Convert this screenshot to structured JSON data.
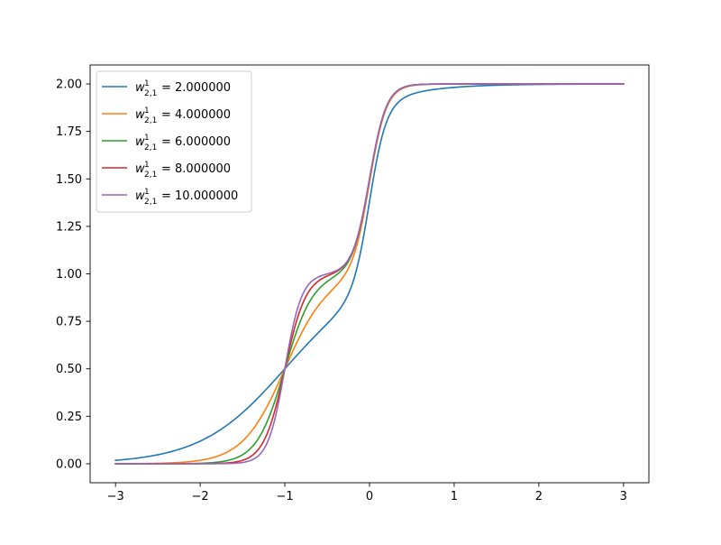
{
  "chart_data": {
    "type": "line",
    "title": "",
    "xlabel": "",
    "ylabel": "",
    "xlim": [
      -3.3,
      3.3
    ],
    "ylim": [
      -0.1,
      2.1
    ],
    "xticks": [
      -3,
      -2,
      -1,
      0,
      1,
      2,
      3
    ],
    "xtick_labels": [
      "−3",
      "−2",
      "−1",
      "0",
      "1",
      "2",
      "3"
    ],
    "yticks": [
      0.0,
      0.25,
      0.5,
      0.75,
      1.0,
      1.25,
      1.5,
      1.75,
      2.0
    ],
    "ytick_labels": [
      "0.00",
      "0.25",
      "0.50",
      "0.75",
      "1.00",
      "1.25",
      "1.50",
      "1.75",
      "2.00"
    ],
    "grid": false,
    "legend_position": "top-left",
    "x_domain": [
      -3,
      3
    ],
    "series": [
      {
        "weight_value": 2,
        "legend_label": "= 2.000000",
        "color": "#1f77b4"
      },
      {
        "weight_value": 4,
        "legend_label": "= 4.000000",
        "color": "#ff7f0e"
      },
      {
        "weight_value": 6,
        "legend_label": "= 6.000000",
        "color": "#2ca02c"
      },
      {
        "weight_value": 8,
        "legend_label": "= 8.000000",
        "color": "#d62728"
      },
      {
        "weight_value": 10,
        "legend_label": "= 10.000000",
        "color": "#9467bd"
      }
    ],
    "legend_symbol": {
      "base": "w",
      "sub": "2,1",
      "sup": "1"
    }
  }
}
